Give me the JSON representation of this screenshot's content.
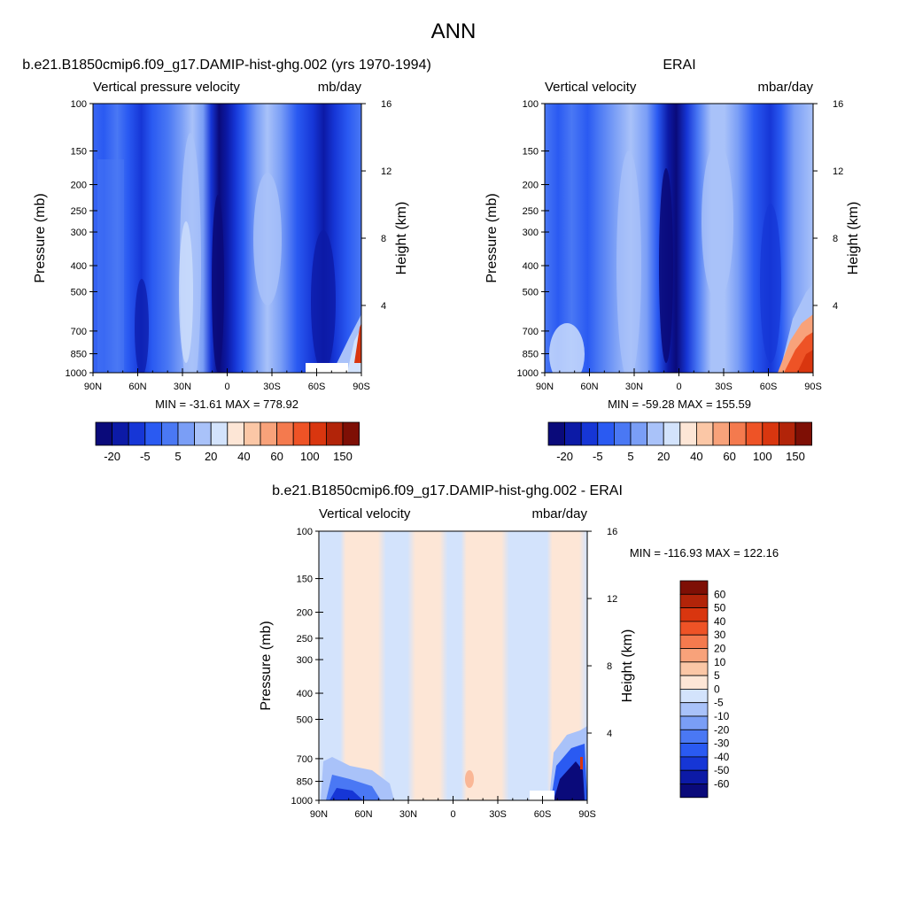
{
  "page_title": "ANN",
  "colors": {
    "neg_palette": [
      "#0a0a7a",
      "#0c1aa6",
      "#1636d6",
      "#2a5af2",
      "#4a78f4",
      "#7a9ef6",
      "#a9c2f9",
      "#d3e3fc"
    ],
    "pos_palette": [
      "#fde6d6",
      "#fbc7a6",
      "#f8a27a",
      "#f47a4e",
      "#ee5326",
      "#d9360f",
      "#b22409",
      "#7e0f05"
    ],
    "diff_neg": [
      "#0a0a7a",
      "#0c1aa6",
      "#1636d6",
      "#2a5af2",
      "#4a78f4",
      "#7a9ef6",
      "#a9c2f9",
      "#d3e3fc"
    ],
    "diff_pos": [
      "#fde6d6",
      "#fbc7a6",
      "#f8a27a",
      "#f47a4e",
      "#ee5326",
      "#d9360f",
      "#b22409",
      "#7e0f05"
    ]
  },
  "chart_data": [
    {
      "type": "heatmap",
      "title": "b.e21.B1850cmip6.f09_g17.DAMIP-hist-ghg.002 (yrs 1970-1994)",
      "left_label": "Vertical pressure velocity",
      "right_label": "mb/day",
      "ylabel": "Pressure (mb)",
      "y2label": "Height (km)",
      "x_ticks": [
        "90N",
        "60N",
        "30N",
        "0",
        "30S",
        "60S",
        "90S"
      ],
      "y_ticks": [
        "100",
        "150",
        "200",
        "250",
        "300",
        "400",
        "500",
        "700",
        "850",
        "1000"
      ],
      "y_tick_values": [
        100,
        150,
        200,
        250,
        300,
        400,
        500,
        700,
        850,
        1000
      ],
      "y2_ticks": [
        "16",
        "12",
        "8",
        "4"
      ],
      "y2_tick_values": [
        16,
        12,
        8,
        4
      ],
      "minmax": "MIN = -31.61  MAX = 778.92",
      "colorbar_labels": [
        "-20",
        "-5",
        "5",
        "20",
        "40",
        "60",
        "100",
        "150"
      ]
    },
    {
      "type": "heatmap",
      "title": "ERAI",
      "left_label": "Vertical velocity",
      "right_label": "mbar/day",
      "ylabel": "Pressure (mb)",
      "y2label": "Height (km)",
      "x_ticks": [
        "90N",
        "60N",
        "30N",
        "0",
        "30S",
        "60S",
        "90S"
      ],
      "y_ticks": [
        "100",
        "150",
        "200",
        "250",
        "300",
        "400",
        "500",
        "700",
        "850",
        "1000"
      ],
      "y_tick_values": [
        100,
        150,
        200,
        250,
        300,
        400,
        500,
        700,
        850,
        1000
      ],
      "y2_ticks": [
        "16",
        "12",
        "8",
        "4"
      ],
      "y2_tick_values": [
        16,
        12,
        8,
        4
      ],
      "minmax": "MIN = -59.28  MAX = 155.59",
      "colorbar_labels": [
        "-20",
        "-5",
        "5",
        "20",
        "40",
        "60",
        "100",
        "150"
      ]
    },
    {
      "type": "heatmap",
      "title": "b.e21.B1850cmip6.f09_g17.DAMIP-hist-ghg.002 - ERAI",
      "left_label": "Vertical velocity",
      "right_label": "mbar/day",
      "ylabel": "Pressure (mb)",
      "y2label": "Height (km)",
      "x_ticks": [
        "90N",
        "60N",
        "30N",
        "0",
        "30S",
        "60S",
        "90S"
      ],
      "y_ticks": [
        "100",
        "150",
        "200",
        "250",
        "300",
        "400",
        "500",
        "700",
        "850",
        "1000"
      ],
      "y_tick_values": [
        100,
        150,
        200,
        250,
        300,
        400,
        500,
        700,
        850,
        1000
      ],
      "y2_ticks": [
        "16",
        "12",
        "8",
        "4"
      ],
      "y2_tick_values": [
        16,
        12,
        8,
        4
      ],
      "minmax": "MIN = -116.93  MAX = 122.16",
      "colorbar_labels": [
        "60",
        "50",
        "40",
        "30",
        "20",
        "10",
        "5",
        "0",
        "-5",
        "-10",
        "-20",
        "-30",
        "-40",
        "-50",
        "-60"
      ]
    }
  ]
}
